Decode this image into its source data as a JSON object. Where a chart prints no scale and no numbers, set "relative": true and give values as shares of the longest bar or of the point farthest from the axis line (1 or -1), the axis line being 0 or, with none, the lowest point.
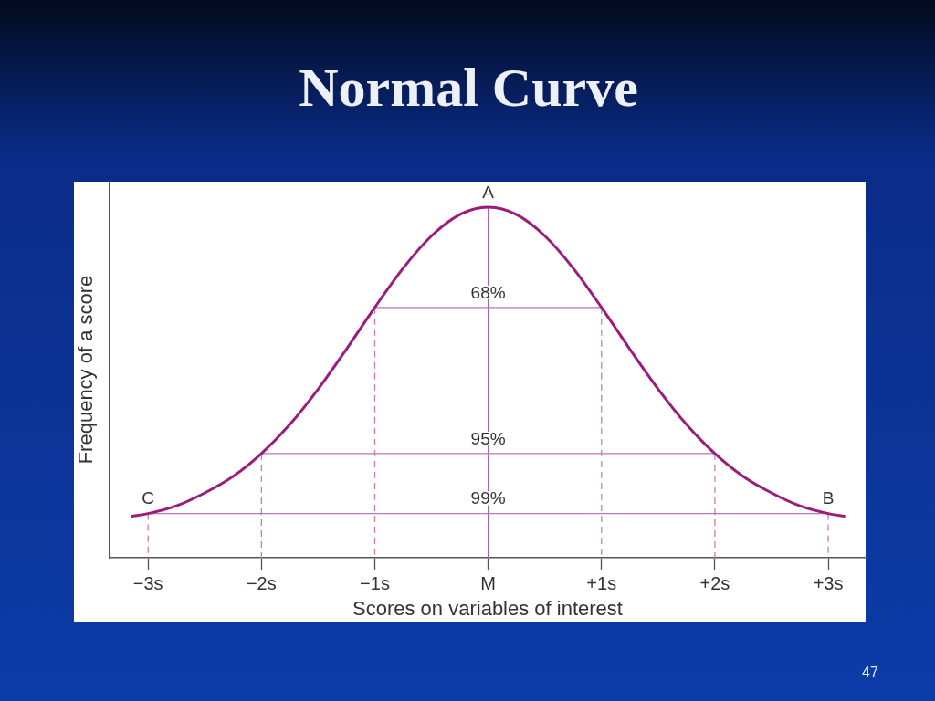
{
  "chart_data": {
    "type": "line",
    "title": "Normal Curve",
    "xlabel": "Scores on variables of interest",
    "ylabel": "Frequency of a score",
    "relative": true,
    "grid": false,
    "xlim": [
      -3.34,
      3.33
    ],
    "xticks": [
      {
        "value": -3,
        "label": "−3s"
      },
      {
        "value": -2,
        "label": "−2s"
      },
      {
        "value": -1,
        "label": "−1s"
      },
      {
        "value": 0,
        "label": "M"
      },
      {
        "value": 1,
        "label": "+1s"
      },
      {
        "value": 2,
        "label": "+2s"
      },
      {
        "value": 3,
        "label": "+3s"
      }
    ],
    "series": [
      {
        "color": "#9b1c7c",
        "x": [
          -3.15,
          -3,
          -2.75,
          -2.5,
          -2.25,
          -2,
          -1.75,
          -1.5,
          -1.25,
          -1,
          -0.75,
          -0.5,
          -0.25,
          0,
          0.25,
          0.5,
          0.75,
          1,
          1.25,
          1.5,
          1.75,
          2,
          2.25,
          2.5,
          2.75,
          3,
          3.15
        ],
        "values": [
          0.118,
          0.126,
          0.148,
          0.185,
          0.232,
          0.297,
          0.38,
          0.481,
          0.595,
          0.714,
          0.826,
          0.918,
          0.979,
          1,
          0.979,
          0.918,
          0.826,
          0.714,
          0.595,
          0.481,
          0.38,
          0.297,
          0.232,
          0.185,
          0.148,
          0.126,
          0.118
        ]
      },
      {
        "color": "#b878b4",
        "x": [
          -1,
          1
        ],
        "values": [
          0.714,
          0.714
        ]
      },
      {
        "color": "#b878b4",
        "x": [
          -2,
          2
        ],
        "values": [
          0.297,
          0.297
        ]
      },
      {
        "color": "#b878b4",
        "x": [
          -3,
          3
        ],
        "values": [
          0.126,
          0.126
        ]
      },
      {
        "color": "#a466a6",
        "x": [
          0,
          0
        ],
        "values": [
          1,
          0
        ]
      },
      {
        "color": "#d07cb0",
        "line_style": "dashed",
        "x": [
          -3,
          -3
        ],
        "values": [
          0.126,
          0
        ]
      },
      {
        "color": "#d07cb0",
        "line_style": "dashed",
        "x": [
          -2,
          -2
        ],
        "values": [
          0.297,
          0
        ]
      },
      {
        "color": "#d07cb0",
        "line_style": "dashed",
        "x": [
          -1,
          -1
        ],
        "values": [
          0.714,
          0
        ]
      },
      {
        "color": "#d07cb0",
        "line_style": "dashed",
        "x": [
          1,
          1
        ],
        "values": [
          0.714,
          0
        ]
      },
      {
        "color": "#d07cb0",
        "line_style": "dashed",
        "x": [
          2,
          2
        ],
        "values": [
          0.297,
          0
        ]
      },
      {
        "color": "#d07cb0",
        "line_style": "dashed",
        "x": [
          3,
          3
        ],
        "values": [
          0.126,
          0
        ]
      }
    ],
    "annotations": [
      {
        "text": "A",
        "x": 0,
        "y": 1
      },
      {
        "text": "B",
        "x": 3,
        "y": 0.126
      },
      {
        "text": "C",
        "x": -3,
        "y": 0.126
      },
      {
        "text": "68%",
        "x": 0,
        "y": 0.714
      },
      {
        "text": "95%",
        "x": 0,
        "y": 0.297
      },
      {
        "text": "99%",
        "x": 0,
        "y": 0.126
      },
      "47"
    ]
  }
}
